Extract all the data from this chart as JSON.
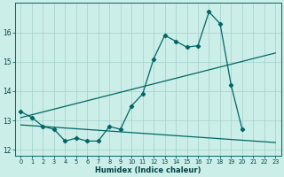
{
  "xlabel": "Humidex (Indice chaleur)",
  "bg_color": "#cceee8",
  "grid_color": "#aad4ce",
  "line_color": "#006666",
  "xlim": [
    -0.5,
    23.5
  ],
  "ylim": [
    11.8,
    17.0
  ],
  "xticks": [
    0,
    1,
    2,
    3,
    4,
    5,
    6,
    7,
    8,
    9,
    10,
    11,
    12,
    13,
    14,
    15,
    16,
    17,
    18,
    19,
    20,
    21,
    22,
    23
  ],
  "yticks": [
    12,
    13,
    14,
    15,
    16
  ],
  "jagged_x": [
    0,
    1,
    2,
    3,
    4,
    5,
    6,
    7,
    8,
    9,
    10,
    11,
    12,
    13,
    14,
    15,
    16,
    17,
    18,
    19,
    20
  ],
  "jagged_y": [
    13.3,
    13.1,
    12.8,
    12.7,
    12.3,
    12.4,
    12.3,
    12.3,
    12.8,
    12.7,
    13.5,
    13.9,
    15.1,
    15.9,
    15.7,
    15.5,
    15.55,
    16.7,
    16.3,
    14.2,
    12.7
  ],
  "upper_line_x": [
    0,
    23
  ],
  "upper_line_y": [
    13.1,
    15.3
  ],
  "lower_line_x": [
    0,
    23
  ],
  "lower_line_y": [
    12.85,
    12.25
  ]
}
